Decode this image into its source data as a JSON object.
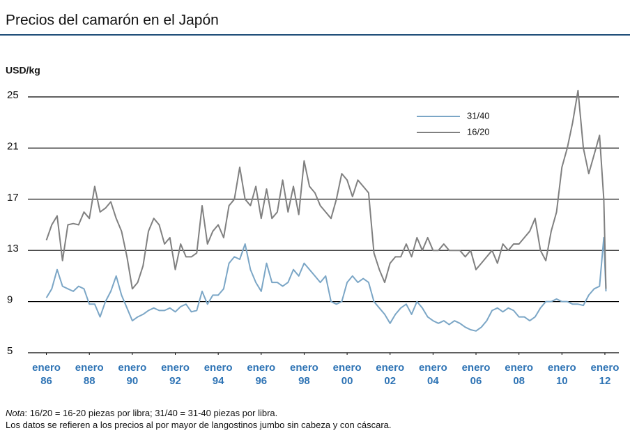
{
  "chart_data": {
    "type": "line",
    "title": "Precios del camarón en el Japón",
    "y_label": "USD/kg",
    "note_label": "Nota",
    "note": ": 16/20 = 16-20 piezas por libra; 31/40 = 31-40 piezas por libra.",
    "source_note": "Los datos se refieren a los precios al por mayor de langostinos jumbo sin cabeza y con cáscara.",
    "x": [
      1986,
      1986.25,
      1986.5,
      1986.75,
      1987,
      1987.25,
      1987.5,
      1987.75,
      1988,
      1988.25,
      1988.5,
      1988.75,
      1989,
      1989.25,
      1989.5,
      1989.75,
      1990,
      1990.25,
      1990.5,
      1990.75,
      1991,
      1991.25,
      1991.5,
      1991.75,
      1992,
      1992.25,
      1992.5,
      1992.75,
      1993,
      1993.25,
      1993.5,
      1993.75,
      1994,
      1994.25,
      1994.5,
      1994.75,
      1995,
      1995.25,
      1995.5,
      1995.75,
      1996,
      1996.25,
      1996.5,
      1996.75,
      1997,
      1997.25,
      1997.5,
      1997.75,
      1998,
      1998.25,
      1998.5,
      1998.75,
      1999,
      1999.25,
      1999.5,
      1999.75,
      2000,
      2000.25,
      2000.5,
      2000.75,
      2001,
      2001.25,
      2001.5,
      2001.75,
      2002,
      2002.25,
      2002.5,
      2002.75,
      2003,
      2003.25,
      2003.5,
      2003.75,
      2004,
      2004.25,
      2004.5,
      2004.75,
      2005,
      2005.25,
      2005.5,
      2005.75,
      2006,
      2006.25,
      2006.5,
      2006.75,
      2007,
      2007.25,
      2007.5,
      2007.75,
      2008,
      2008.25,
      2008.5,
      2008.75,
      2009,
      2009.25,
      2009.5,
      2009.75,
      2010,
      2010.25,
      2010.5,
      2010.75,
      2011,
      2011.25,
      2011.5,
      2011.75,
      2011.95,
      2012.05
    ],
    "series": [
      {
        "name": "31/40",
        "color": "#7ba6c6",
        "values": [
          9.3,
          10,
          11.5,
          10.2,
          10,
          9.8,
          10.2,
          10,
          8.8,
          8.8,
          7.8,
          9,
          9.8,
          11,
          9.5,
          8.5,
          7.5,
          7.8,
          8,
          8.3,
          8.5,
          8.3,
          8.3,
          8.5,
          8.2,
          8.6,
          8.8,
          8.2,
          8.3,
          9.8,
          8.8,
          9.5,
          9.5,
          10,
          12,
          12.5,
          12.3,
          13.5,
          11.5,
          10.5,
          9.8,
          12,
          10.5,
          10.5,
          10.2,
          10.5,
          11.5,
          11,
          12,
          11.5,
          11,
          10.5,
          11,
          9,
          8.8,
          9,
          10.5,
          11,
          10.5,
          10.8,
          10.5,
          9,
          8.5,
          8,
          7.3,
          8,
          8.5,
          8.8,
          8,
          9,
          8.5,
          7.8,
          7.5,
          7.3,
          7.5,
          7.2,
          7.5,
          7.3,
          7,
          6.8,
          6.7,
          7,
          7.5,
          8.3,
          8.5,
          8.2,
          8.5,
          8.3,
          7.8,
          7.8,
          7.5,
          7.8,
          8.5,
          9,
          9,
          9.2,
          9,
          9,
          8.8,
          8.8,
          8.7,
          9.5,
          10,
          10.2,
          14,
          9.8
        ]
      },
      {
        "name": "16/20",
        "color": "#808080",
        "values": [
          13.8,
          15,
          15.7,
          12.2,
          15,
          15.1,
          15,
          16,
          15.5,
          18,
          16,
          16.3,
          16.8,
          15.5,
          14.5,
          12.5,
          10,
          10.5,
          11.8,
          14.5,
          15.5,
          15,
          13.5,
          14,
          11.5,
          13.5,
          12.5,
          12.5,
          12.8,
          16.5,
          13.5,
          14.5,
          15,
          14,
          16.5,
          17,
          19.5,
          17,
          16.5,
          18,
          15.5,
          17.8,
          15.5,
          16,
          18.5,
          16,
          18,
          15.8,
          20,
          18,
          17.5,
          16.5,
          16,
          15.5,
          17,
          19,
          18.5,
          17.2,
          18.5,
          18,
          17.5,
          12.8,
          11.5,
          10.5,
          12,
          12.5,
          12.5,
          13.5,
          12.5,
          14,
          13,
          14,
          13,
          13,
          13.5,
          13,
          13,
          13,
          12.5,
          13,
          11.5,
          12,
          12.5,
          13,
          12,
          13.5,
          13,
          13.5,
          13.5,
          14,
          14.5,
          15.5,
          13,
          12.2,
          14.5,
          16,
          19.5,
          21,
          23,
          25.5,
          21,
          19,
          20.5,
          22,
          17,
          10
        ]
      }
    ],
    "xlim": [
      1984.1,
      2012.65
    ],
    "xticks": [
      {
        "value": 1986,
        "label": "enero 86"
      },
      {
        "value": 1988,
        "label": "enero 88"
      },
      {
        "value": 1990,
        "label": "enero 90"
      },
      {
        "value": 1992,
        "label": "enero 92"
      },
      {
        "value": 1994,
        "label": "enero 94"
      },
      {
        "value": 1996,
        "label": "enero 96"
      },
      {
        "value": 1998,
        "label": "enero 98"
      },
      {
        "value": 2000,
        "label": "enero 00"
      },
      {
        "value": 2002,
        "label": "enero 02"
      },
      {
        "value": 2004,
        "label": "enero 04"
      },
      {
        "value": 2006,
        "label": "enero 06"
      },
      {
        "value": 2008,
        "label": "enero 08"
      },
      {
        "value": 2010,
        "label": "enero 10"
      },
      {
        "value": 2012,
        "label": "enero 12"
      }
    ],
    "ylim": [
      5,
      25
    ],
    "yticks": [
      5,
      9,
      13,
      17,
      21,
      25
    ],
    "grid": true,
    "legend": "upper right"
  }
}
